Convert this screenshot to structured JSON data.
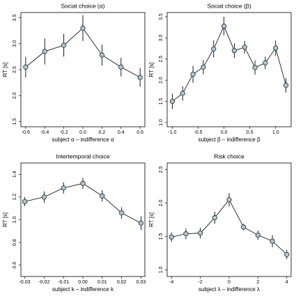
{
  "chart_data": [
    {
      "type": "line",
      "title": "Social choice (α)",
      "xlabel": "subject α – indifference α",
      "ylabel": "RT [s]",
      "x": [
        -0.6,
        -0.4,
        -0.2,
        0,
        0.2,
        0.4,
        0.6
      ],
      "values": [
        2.55,
        2.85,
        2.97,
        3.3,
        2.78,
        2.55,
        2.35
      ],
      "errors": [
        0.2,
        0.25,
        0.22,
        0.25,
        0.2,
        0.18,
        0.18
      ],
      "color": "#a9c7da",
      "xlim": [
        -0.65,
        0.65
      ],
      "xticks": [
        -0.6,
        -0.4,
        -0.2,
        {
          "value": 0,
          "label": "0.0"
        },
        0.2,
        0.4,
        0.6
      ],
      "ylim": [
        1.4,
        3.6
      ],
      "yticks": [
        1.5,
        {
          "value": 2,
          "label": "2.0"
        },
        2.5,
        {
          "value": 3,
          "label": "3.0"
        },
        3.5
      ]
    },
    {
      "type": "line",
      "title": "Social choice (β)",
      "xlabel": "subject β – indifference β",
      "ylabel": "RT [s]",
      "x": [
        -1,
        -0.8,
        -0.6,
        -0.4,
        -0.2,
        0,
        0.2,
        0.4,
        0.6,
        0.8,
        1,
        1.2
      ],
      "values": [
        1.5,
        1.69,
        2.14,
        2.31,
        2.74,
        3.28,
        2.7,
        2.78,
        2.3,
        2.41,
        2.76,
        1.88
      ],
      "errors": [
        0.18,
        0.17,
        0.2,
        0.17,
        0.2,
        0.22,
        0.17,
        0.15,
        0.17,
        0.15,
        0.18,
        0.17
      ],
      "color": "#a9c7da",
      "xlim": [
        -1.1,
        1.3
      ],
      "xticks": [
        {
          "value": -1,
          "label": "-1.0"
        },
        -0.5,
        {
          "value": 0,
          "label": "0.0"
        },
        0.5,
        {
          "value": 1,
          "label": "1.0"
        }
      ],
      "ylim": [
        0.9,
        3.6
      ],
      "yticks": [
        {
          "value": 1,
          "label": "1.0"
        },
        1.5,
        {
          "value": 2,
          "label": "2.0"
        },
        2.5,
        {
          "value": 3,
          "label": "3.0"
        },
        3.5
      ]
    },
    {
      "type": "line",
      "title": "Intertemporal choice",
      "xlabel": "subject k – indifference k",
      "ylabel": "RT [s]",
      "x": [
        -0.03,
        -0.02,
        -0.01,
        0,
        0.01,
        0.02,
        0.03
      ],
      "values": [
        1.16,
        1.2,
        1.28,
        1.32,
        1.21,
        1.06,
        0.97
      ],
      "errors": [
        0.04,
        0.05,
        0.05,
        0.05,
        0.05,
        0.05,
        0.06
      ],
      "color": "#a9c7da",
      "xlim": [
        -0.032,
        0.032
      ],
      "xticks": [
        -0.03,
        -0.02,
        -0.01,
        {
          "value": 0,
          "label": "0.00"
        },
        0.01,
        0.02,
        0.03
      ],
      "ylim": [
        0.5,
        1.5
      ],
      "yticks": [
        0.6,
        0.8,
        {
          "value": 1,
          "label": "1.0"
        },
        1.2,
        1.4
      ]
    },
    {
      "type": "line",
      "title": "Risk choice",
      "xlabel": "subject λ – indifference λ",
      "ylabel": "RT [s]",
      "x": [
        -4,
        -3,
        -2,
        -1,
        0,
        1,
        2,
        3,
        4
      ],
      "values": [
        1.49,
        1.54,
        1.55,
        1.78,
        2.05,
        1.64,
        1.52,
        1.43,
        1.23
      ],
      "errors": [
        0.07,
        0.08,
        0.08,
        0.09,
        0.1,
        0.05,
        0.07,
        0.09,
        0.07
      ],
      "color": "#a9c7da",
      "xlim": [
        -4.3,
        4.3
      ],
      "xticks": [
        -4,
        -2,
        0,
        2,
        4
      ],
      "ylim": [
        0.9,
        2.6
      ],
      "yticks": [
        {
          "value": 1,
          "label": "1.0"
        },
        1.5,
        {
          "value": 2,
          "label": "2.0"
        },
        2.5
      ]
    }
  ]
}
